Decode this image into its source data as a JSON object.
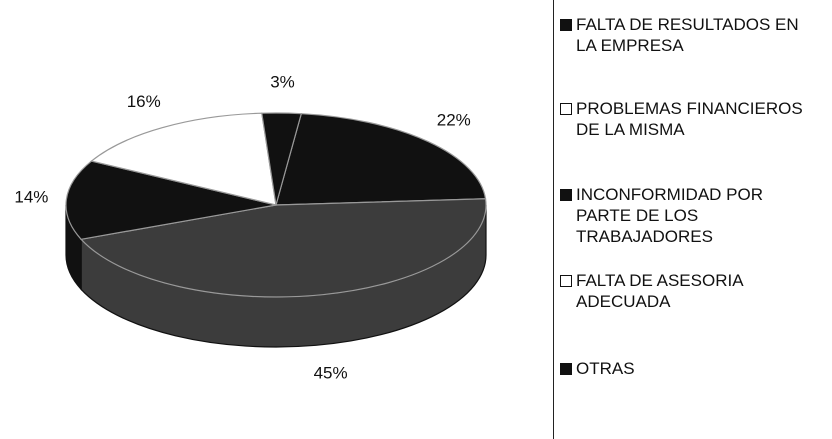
{
  "chart_data": {
    "type": "pie",
    "categories": [
      "FALTA DE RESULTADOS EN LA EMPRESA",
      "PROBLEMAS FINANCIEROS DE LA MISMA",
      "INCONFORMIDAD POR PARTE DE LOS TRABAJADORES",
      "FALTA DE ASESORIA ADECUADA",
      "OTRAS"
    ],
    "values": [
      22,
      45,
      14,
      16,
      3
    ],
    "value_labels": [
      "22%",
      "45%",
      "14%",
      "16%",
      "3%"
    ],
    "colors": [
      "#111111",
      "#3c3c3c",
      "#111111",
      "#ffffff",
      "#111111"
    ],
    "legend": "right"
  }
}
